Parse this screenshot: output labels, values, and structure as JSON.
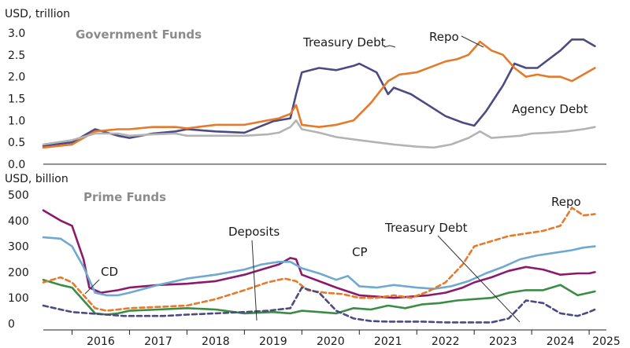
{
  "chart_data": [
    {
      "type": "line",
      "title": "Government Funds",
      "ylabel": "USD, trillion",
      "ylim": [
        0,
        3.0
      ],
      "yticks": [
        "0.0",
        "0.5",
        "1.0",
        "1.5",
        "2.0",
        "2.5",
        "3.0"
      ],
      "xlim": [
        2015.5,
        2025.3
      ],
      "series": [
        {
          "name": "Treasury Debt",
          "color": "#4b4a82",
          "dashed": false,
          "x": [
            2015.5,
            2016.0,
            2016.4,
            2016.8,
            2017.0,
            2017.4,
            2017.8,
            2018.0,
            2018.5,
            2019.0,
            2019.5,
            2019.8,
            2019.9,
            2020.0,
            2020.3,
            2020.6,
            2020.9,
            2021.0,
            2021.3,
            2021.5,
            2021.6,
            2021.9,
            2022.2,
            2022.5,
            2022.8,
            2023.0,
            2023.2,
            2023.3,
            2023.5,
            2023.7,
            2023.9,
            2024.1,
            2024.3,
            2024.5,
            2024.7,
            2024.9,
            2025.1
          ],
          "y": [
            0.42,
            0.5,
            0.8,
            0.65,
            0.6,
            0.7,
            0.75,
            0.8,
            0.75,
            0.72,
            0.98,
            1.05,
            1.6,
            2.1,
            2.2,
            2.15,
            2.25,
            2.3,
            2.1,
            1.6,
            1.75,
            1.6,
            1.35,
            1.1,
            0.95,
            0.88,
            1.2,
            1.4,
            1.8,
            2.3,
            2.2,
            2.2,
            2.4,
            2.6,
            2.85,
            2.85,
            2.7
          ]
        },
        {
          "name": "Repo",
          "color": "#e57a2b",
          "dashed": false,
          "x": [
            2015.5,
            2016.0,
            2016.4,
            2016.8,
            2017.0,
            2017.4,
            2017.8,
            2018.0,
            2018.5,
            2019.0,
            2019.4,
            2019.6,
            2019.8,
            2019.9,
            2020.0,
            2020.3,
            2020.6,
            2020.9,
            2021.2,
            2021.5,
            2021.7,
            2022.0,
            2022.3,
            2022.5,
            2022.7,
            2022.9,
            2023.1,
            2023.3,
            2023.5,
            2023.7,
            2023.9,
            2024.1,
            2024.3,
            2024.5,
            2024.7,
            2024.9,
            2025.1
          ],
          "y": [
            0.38,
            0.45,
            0.75,
            0.8,
            0.8,
            0.85,
            0.85,
            0.82,
            0.9,
            0.9,
            1.0,
            1.05,
            1.15,
            1.35,
            0.9,
            0.85,
            0.9,
            1.0,
            1.4,
            1.9,
            2.05,
            2.1,
            2.25,
            2.35,
            2.4,
            2.5,
            2.8,
            2.6,
            2.5,
            2.2,
            2.0,
            2.05,
            2.0,
            2.0,
            1.9,
            2.05,
            2.2
          ]
        },
        {
          "name": "Agency Debt",
          "color": "#b3b3b3",
          "dashed": false,
          "x": [
            2015.5,
            2016.0,
            2016.4,
            2016.8,
            2017.0,
            2017.4,
            2017.8,
            2018.0,
            2018.5,
            2019.0,
            2019.4,
            2019.6,
            2019.8,
            2019.9,
            2020.0,
            2020.3,
            2020.6,
            2021.0,
            2021.3,
            2021.6,
            2022.0,
            2022.3,
            2022.6,
            2022.9,
            2023.1,
            2023.3,
            2023.5,
            2023.8,
            2024.0,
            2024.3,
            2024.6,
            2024.9,
            2025.1
          ],
          "y": [
            0.45,
            0.55,
            0.7,
            0.7,
            0.65,
            0.68,
            0.7,
            0.65,
            0.65,
            0.65,
            0.68,
            0.72,
            0.85,
            1.0,
            0.8,
            0.72,
            0.62,
            0.55,
            0.5,
            0.45,
            0.4,
            0.38,
            0.45,
            0.6,
            0.75,
            0.6,
            0.62,
            0.65,
            0.7,
            0.72,
            0.75,
            0.8,
            0.85
          ]
        }
      ],
      "annotations": [
        "Treasury Debt",
        "Repo",
        "Agency Debt"
      ]
    },
    {
      "type": "line",
      "title": "Prime Funds",
      "ylabel": "USD, billion",
      "ylim": [
        0,
        500
      ],
      "yticks": [
        "0",
        "50",
        "100",
        "150",
        "200",
        "250",
        "300",
        "350",
        "400",
        "450",
        "500"
      ],
      "xlim": [
        2015.5,
        2025.3
      ],
      "xticks": [
        "2016",
        "2017",
        "2018",
        "2019",
        "2020",
        "2021",
        "2022",
        "2023",
        "2024",
        "2025"
      ],
      "series": [
        {
          "name": "CD",
          "color": "#8b1a6b",
          "dashed": false,
          "x": [
            2015.5,
            2015.8,
            2016.0,
            2016.2,
            2016.3,
            2016.5,
            2016.8,
            2017.0,
            2017.5,
            2018.0,
            2018.5,
            2019.0,
            2019.3,
            2019.6,
            2019.8,
            2019.9,
            2020.0,
            2020.3,
            2020.6,
            2021.0,
            2021.3,
            2021.6,
            2021.9,
            2022.2,
            2022.5,
            2022.8,
            2023.0,
            2023.3,
            2023.6,
            2023.9,
            2024.2,
            2024.5,
            2024.8,
            2025.0,
            2025.1
          ],
          "y": [
            440,
            400,
            380,
            250,
            140,
            120,
            130,
            140,
            150,
            155,
            165,
            190,
            210,
            230,
            255,
            250,
            190,
            165,
            140,
            110,
            105,
            100,
            105,
            110,
            120,
            140,
            160,
            180,
            205,
            220,
            210,
            190,
            195,
            195,
            200
          ]
        },
        {
          "name": "Deposits",
          "color": "#6fa8d0",
          "dashed": false,
          "x": [
            2015.5,
            2015.8,
            2016.0,
            2016.2,
            2016.4,
            2016.6,
            2016.8,
            2017.0,
            2017.5,
            2018.0,
            2018.5,
            2019.0,
            2019.3,
            2019.6,
            2019.8,
            2020.0,
            2020.3,
            2020.6,
            2020.8,
            2021.0,
            2021.3,
            2021.6,
            2022.0,
            2022.3,
            2022.6,
            2022.9,
            2023.2,
            2023.5,
            2023.8,
            2024.1,
            2024.4,
            2024.7,
            2024.9,
            2025.1
          ],
          "y": [
            335,
            330,
            300,
            220,
            120,
            110,
            110,
            120,
            150,
            175,
            190,
            210,
            230,
            240,
            240,
            215,
            195,
            170,
            185,
            145,
            140,
            150,
            140,
            135,
            145,
            165,
            195,
            220,
            250,
            265,
            275,
            285,
            295,
            300
          ]
        },
        {
          "name": "CP",
          "color": "#3c8c46",
          "dashed": false,
          "x": [
            2015.5,
            2015.8,
            2016.0,
            2016.2,
            2016.4,
            2016.6,
            2016.8,
            2017.0,
            2017.5,
            2018.0,
            2018.5,
            2019.0,
            2019.5,
            2019.8,
            2020.0,
            2020.3,
            2020.6,
            2020.9,
            2021.2,
            2021.5,
            2021.8,
            2022.1,
            2022.4,
            2022.7,
            2023.0,
            2023.3,
            2023.6,
            2023.9,
            2024.2,
            2024.5,
            2024.8,
            2025.0,
            2025.1
          ],
          "y": [
            170,
            150,
            140,
            90,
            40,
            35,
            40,
            50,
            55,
            60,
            55,
            40,
            45,
            40,
            50,
            45,
            40,
            60,
            55,
            70,
            60,
            75,
            80,
            90,
            95,
            100,
            120,
            130,
            130,
            150,
            110,
            120,
            125
          ]
        },
        {
          "name": "Repo",
          "color": "#e57a2b",
          "dashed": true,
          "x": [
            2015.5,
            2015.8,
            2016.0,
            2016.2,
            2016.4,
            2016.6,
            2016.8,
            2017.0,
            2017.5,
            2018.0,
            2018.5,
            2019.0,
            2019.4,
            2019.7,
            2019.9,
            2020.1,
            2020.4,
            2020.7,
            2021.0,
            2021.3,
            2021.6,
            2021.9,
            2022.2,
            2022.5,
            2022.8,
            2023.0,
            2023.3,
            2023.6,
            2023.9,
            2024.2,
            2024.5,
            2024.7,
            2024.9,
            2025.1
          ],
          "y": [
            160,
            180,
            160,
            110,
            60,
            50,
            55,
            60,
            65,
            70,
            95,
            130,
            160,
            175,
            165,
            130,
            120,
            115,
            100,
            100,
            110,
            100,
            125,
            160,
            230,
            300,
            320,
            340,
            350,
            360,
            380,
            450,
            420,
            425
          ]
        },
        {
          "name": "Treasury Debt",
          "color": "#4b4a82",
          "dashed": true,
          "x": [
            2015.5,
            2015.8,
            2016.0,
            2016.3,
            2016.6,
            2016.9,
            2017.2,
            2017.6,
            2018.0,
            2018.5,
            2019.0,
            2019.4,
            2019.8,
            2020.0,
            2020.3,
            2020.6,
            2020.9,
            2021.2,
            2021.5,
            2021.8,
            2022.1,
            2022.5,
            2022.9,
            2023.3,
            2023.6,
            2023.9,
            2024.2,
            2024.5,
            2024.8,
            2025.0,
            2025.1
          ],
          "y": [
            70,
            55,
            45,
            40,
            35,
            30,
            30,
            30,
            35,
            40,
            45,
            50,
            60,
            140,
            120,
            50,
            20,
            10,
            8,
            8,
            8,
            5,
            5,
            5,
            20,
            90,
            80,
            40,
            30,
            45,
            55
          ]
        }
      ],
      "annotations": [
        "CD",
        "Deposits",
        "CP",
        "Treasury Debt",
        "Repo"
      ]
    }
  ]
}
